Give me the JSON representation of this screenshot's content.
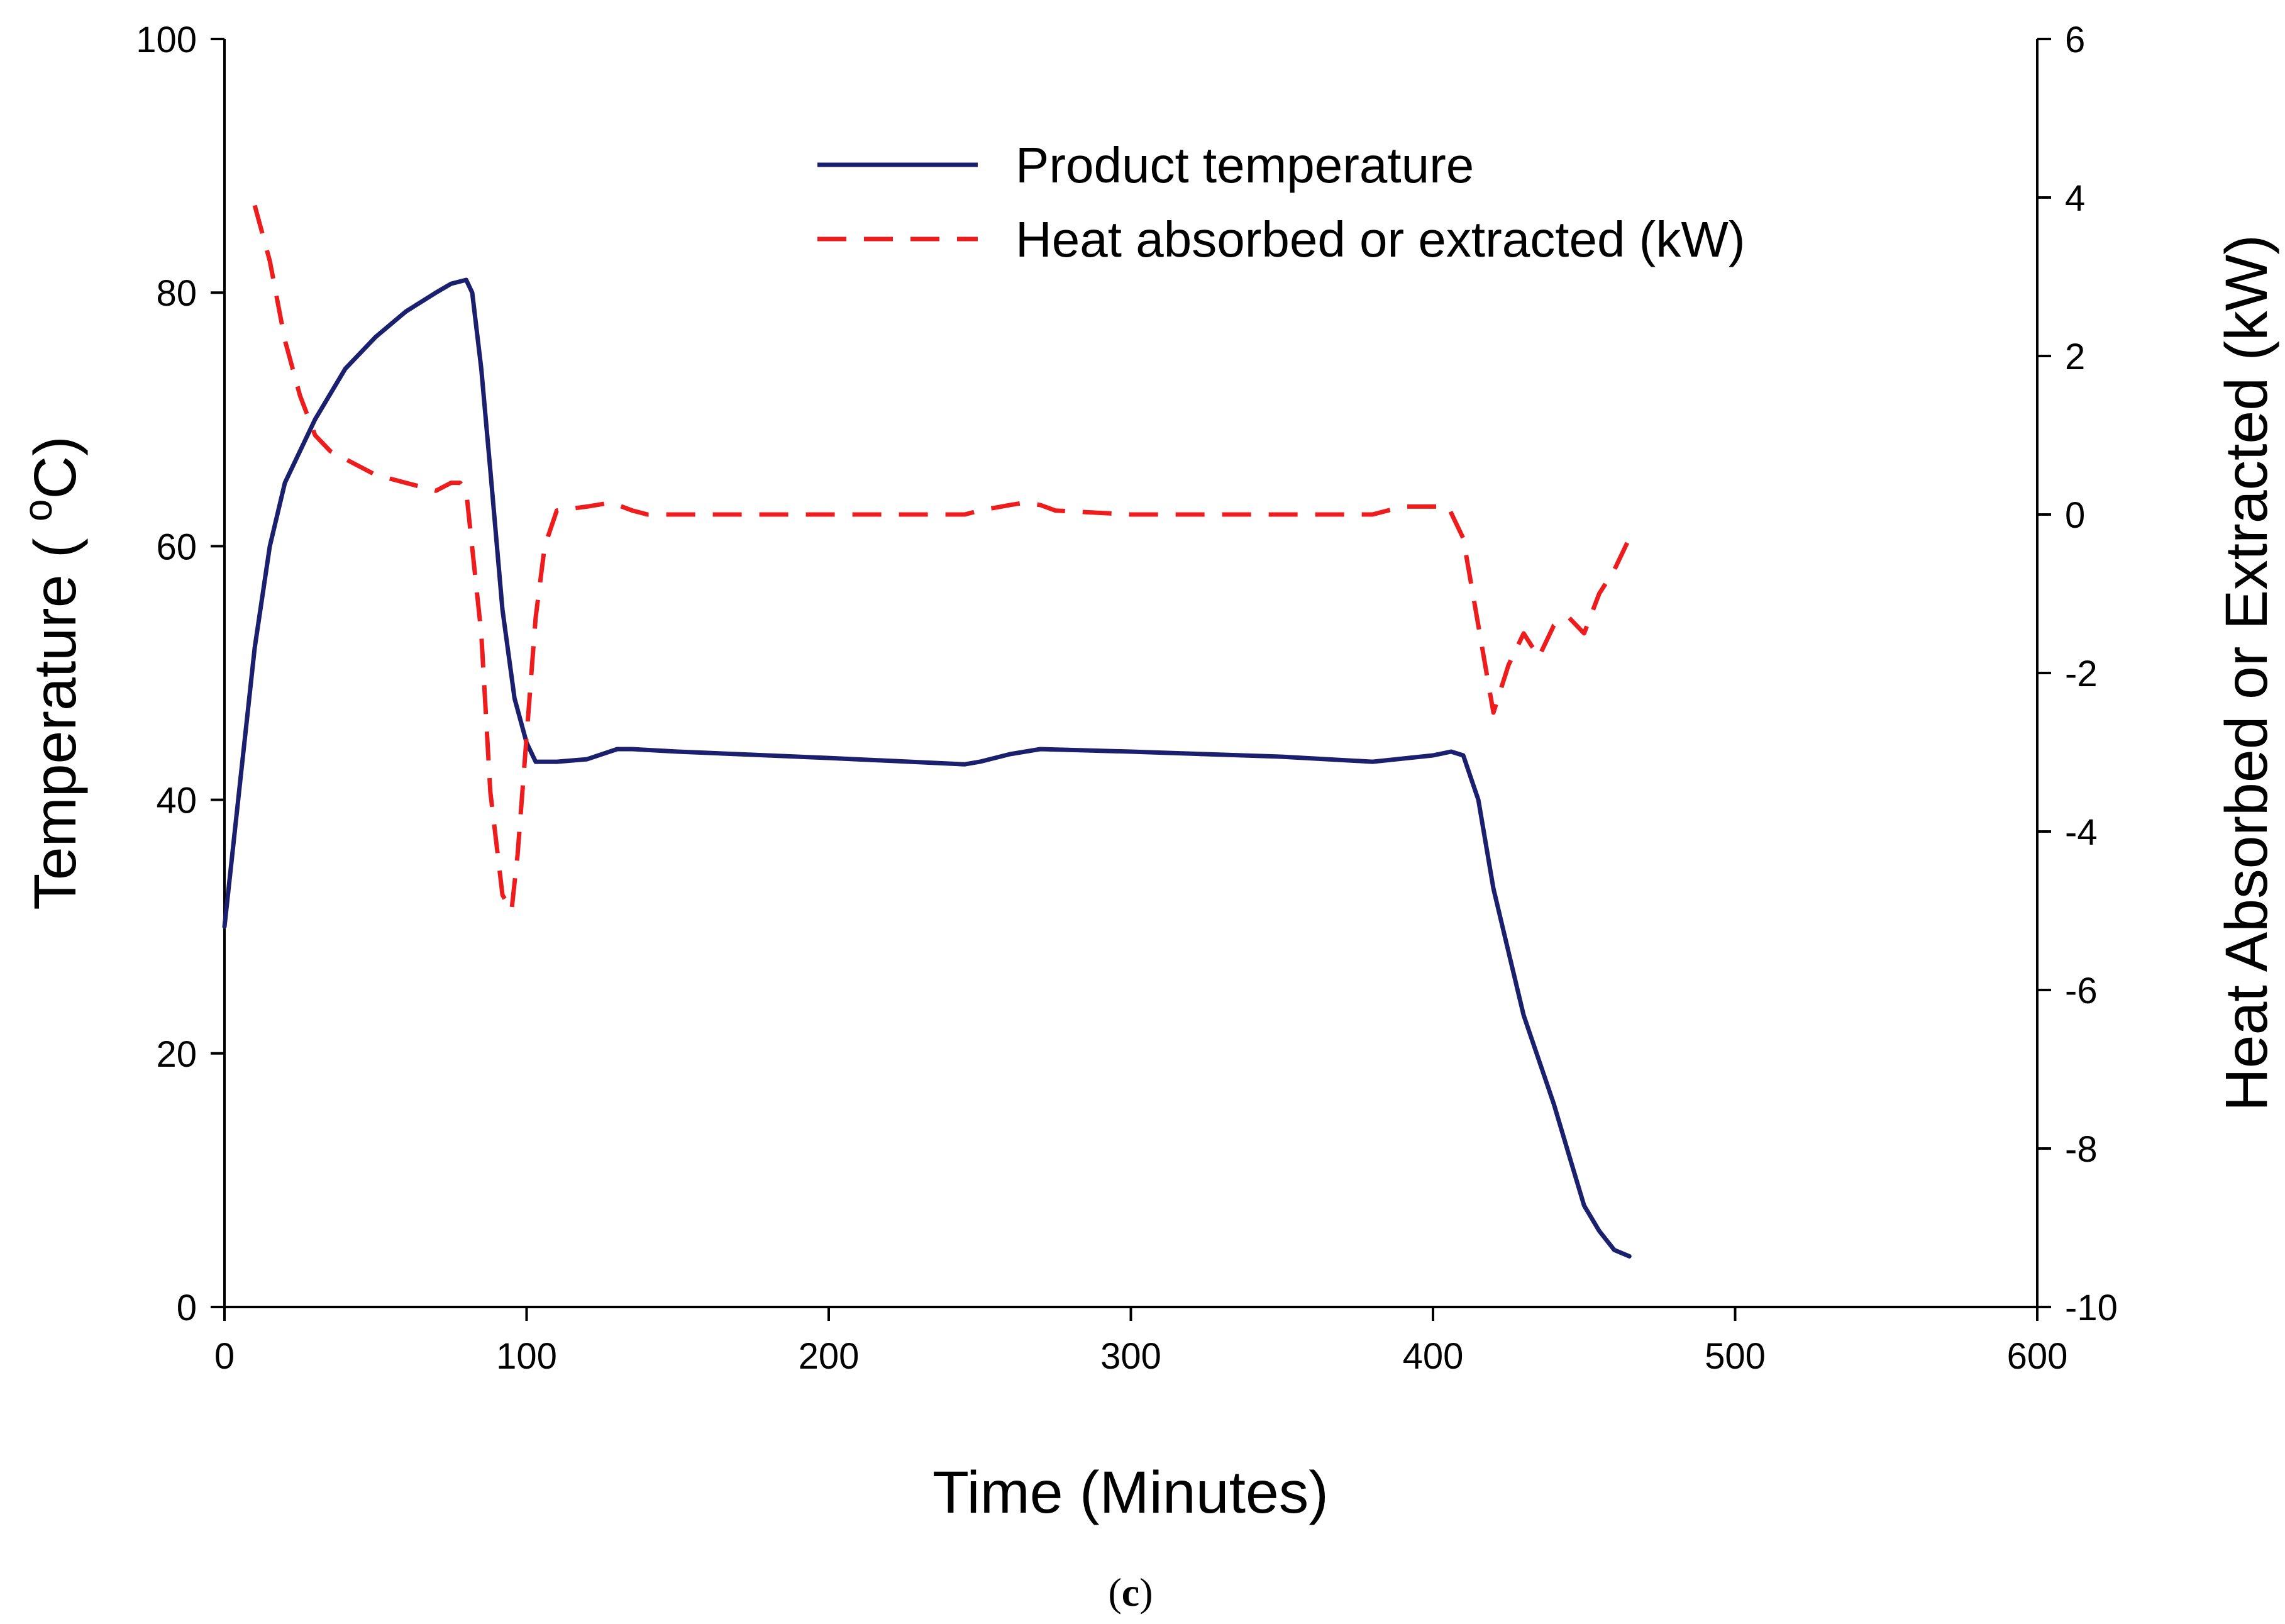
{
  "chart_data": {
    "type": "line",
    "caption": {
      "open": "(",
      "letter": "c",
      "close": ")"
    },
    "xlabel": "Time (Minutes)",
    "ylabel": {
      "prefix": "Temperature ( ",
      "sup": "o",
      "unit": "C)"
    },
    "y2label": "Heat Absorbed or Extracted (kW)",
    "xlim": [
      0,
      600
    ],
    "ylim": [
      0,
      100
    ],
    "y2lim": [
      -10,
      6
    ],
    "x_ticks": [
      0,
      100,
      200,
      300,
      400,
      500,
      600
    ],
    "x_tick_labels": [
      "0",
      "100",
      "200",
      "300",
      "400",
      "500",
      "600"
    ],
    "y_ticks": [
      0,
      20,
      40,
      60,
      80,
      100
    ],
    "y_tick_labels": [
      "0",
      "20",
      "40",
      "60",
      "80",
      "100"
    ],
    "y2_ticks": [
      -10,
      -8,
      -6,
      -4,
      -2,
      0,
      2,
      4,
      6
    ],
    "y2_tick_labels": [
      "-10",
      "-8",
      "-6",
      "-4",
      "-2",
      "0",
      "2",
      "4",
      "6"
    ],
    "grid": false,
    "legend_position": "top-center",
    "colors": {
      "temperature": "#1a1f6e",
      "heat": "#ee1c1c"
    },
    "series": [
      {
        "name": "Product temperature",
        "axis": "left",
        "style": "solid",
        "x": [
          0,
          5,
          10,
          15,
          20,
          30,
          40,
          50,
          60,
          70,
          75,
          80,
          82,
          85,
          88,
          92,
          96,
          100,
          103,
          106,
          110,
          120,
          130,
          135,
          150,
          200,
          245,
          250,
          260,
          270,
          300,
          350,
          380,
          400,
          406,
          410,
          415,
          420,
          425,
          430,
          440,
          445,
          450,
          455,
          460,
          465
        ],
        "values": [
          30,
          41,
          52,
          60,
          65,
          70,
          74,
          76.5,
          78.5,
          80,
          80.7,
          81,
          80,
          74,
          66,
          55,
          48,
          44.5,
          43,
          43,
          43,
          43.2,
          44,
          44,
          43.8,
          43.3,
          42.8,
          43,
          43.6,
          44,
          43.8,
          43.4,
          43,
          43.5,
          43.8,
          43.5,
          40,
          33,
          28,
          23,
          16,
          12,
          8,
          6,
          4.5,
          4
        ]
      },
      {
        "name": "Heat absorbed or extracted (kW)",
        "axis": "right",
        "style": "dashed",
        "x": [
          10,
          15,
          20,
          25,
          30,
          35,
          40,
          50,
          60,
          70,
          75,
          78,
          80,
          85,
          88,
          92,
          95,
          97,
          100,
          103,
          106,
          110,
          120,
          128,
          135,
          140,
          200,
          245,
          250,
          260,
          265,
          270,
          275,
          300,
          350,
          380,
          385,
          390,
          400,
          405,
          410,
          415,
          420,
          425,
          430,
          435,
          440,
          445,
          450,
          455,
          460,
          465
        ],
        "values": [
          3.9,
          3.2,
          2.2,
          1.5,
          1.0,
          0.8,
          0.7,
          0.5,
          0.4,
          0.3,
          0.4,
          0.4,
          0.3,
          -1.5,
          -3.5,
          -4.8,
          -5,
          -4.3,
          -2.8,
          -1.3,
          -0.4,
          0.05,
          0.1,
          0.15,
          0.05,
          0,
          0,
          0,
          0.05,
          0.12,
          0.15,
          0.12,
          0.05,
          0,
          0,
          0,
          0.05,
          0.1,
          0.1,
          0.1,
          -0.3,
          -1.4,
          -2.5,
          -1.9,
          -1.5,
          -1.8,
          -1.4,
          -1.3,
          -1.5,
          -1.0,
          -0.7,
          -0.3
        ]
      }
    ]
  }
}
